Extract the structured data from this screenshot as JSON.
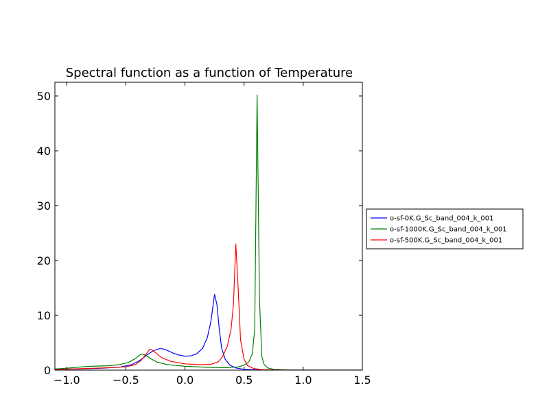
{
  "chart_data": {
    "type": "line",
    "title": "Spectral function as a function of Temperature",
    "xlabel": "",
    "ylabel": "",
    "xlim": [
      -1.1,
      1.5
    ],
    "ylim": [
      0,
      52.5
    ],
    "xticks": [
      -1.0,
      -0.5,
      0.0,
      0.5,
      1.0,
      1.5
    ],
    "xtick_labels": [
      "−1.0",
      "−0.5",
      "0.0",
      "0.5",
      "1.0",
      "1.5"
    ],
    "yticks": [
      0,
      10,
      20,
      30,
      40,
      50
    ],
    "ytick_labels": [
      "0",
      "10",
      "20",
      "30",
      "40",
      "50"
    ],
    "grid": false,
    "legend_position": "right, outside plot area",
    "series": [
      {
        "name": "o-sf-0K.G_Sc_band_004_k_001",
        "color": "#0000ff",
        "points": [
          [
            -1.1,
            0.15
          ],
          [
            -0.9,
            0.2
          ],
          [
            -0.7,
            0.35
          ],
          [
            -0.55,
            0.55
          ],
          [
            -0.45,
            1.0
          ],
          [
            -0.38,
            1.8
          ],
          [
            -0.32,
            2.8
          ],
          [
            -0.27,
            3.5
          ],
          [
            -0.22,
            3.9
          ],
          [
            -0.19,
            3.9
          ],
          [
            -0.15,
            3.6
          ],
          [
            -0.1,
            3.1
          ],
          [
            -0.05,
            2.75
          ],
          [
            0.0,
            2.55
          ],
          [
            0.05,
            2.6
          ],
          [
            0.1,
            3.0
          ],
          [
            0.15,
            4.0
          ],
          [
            0.19,
            6.0
          ],
          [
            0.22,
            9.0
          ],
          [
            0.25,
            13.8
          ],
          [
            0.27,
            12.0
          ],
          [
            0.29,
            7.5
          ],
          [
            0.31,
            4.0
          ],
          [
            0.34,
            2.0
          ],
          [
            0.38,
            0.9
          ],
          [
            0.43,
            0.4
          ],
          [
            0.5,
            0.15
          ],
          [
            0.6,
            0.05
          ],
          [
            0.8,
            0.01
          ],
          [
            1.5,
            0.0
          ]
        ]
      },
      {
        "name": "o-sf-1000K.G_Sc_band_004_k_001",
        "color": "#008000",
        "points": [
          [
            -1.1,
            0.2
          ],
          [
            -1.0,
            0.35
          ],
          [
            -0.9,
            0.55
          ],
          [
            -0.8,
            0.7
          ],
          [
            -0.65,
            0.8
          ],
          [
            -0.55,
            1.0
          ],
          [
            -0.48,
            1.4
          ],
          [
            -0.42,
            2.1
          ],
          [
            -0.38,
            2.8
          ],
          [
            -0.36,
            2.95
          ],
          [
            -0.33,
            2.7
          ],
          [
            -0.29,
            2.1
          ],
          [
            -0.24,
            1.5
          ],
          [
            -0.15,
            1.0
          ],
          [
            0.0,
            0.7
          ],
          [
            0.2,
            0.5
          ],
          [
            0.35,
            0.45
          ],
          [
            0.45,
            0.6
          ],
          [
            0.5,
            0.9
          ],
          [
            0.54,
            1.5
          ],
          [
            0.57,
            3.0
          ],
          [
            0.59,
            7.5
          ],
          [
            0.61,
            50.2
          ],
          [
            0.63,
            13.0
          ],
          [
            0.65,
            2.5
          ],
          [
            0.67,
            1.0
          ],
          [
            0.7,
            0.4
          ],
          [
            0.75,
            0.15
          ],
          [
            0.85,
            0.05
          ],
          [
            1.0,
            0.01
          ],
          [
            1.5,
            0.0
          ]
        ]
      },
      {
        "name": "o-sf-500K.G_Sc_band_004_k_001",
        "color": "#ff0000",
        "points": [
          [
            -1.1,
            0.15
          ],
          [
            -0.9,
            0.25
          ],
          [
            -0.7,
            0.4
          ],
          [
            -0.5,
            0.6
          ],
          [
            -0.42,
            1.0
          ],
          [
            -0.37,
            1.8
          ],
          [
            -0.33,
            2.9
          ],
          [
            -0.3,
            3.75
          ],
          [
            -0.28,
            3.7
          ],
          [
            -0.25,
            3.2
          ],
          [
            -0.2,
            2.3
          ],
          [
            -0.12,
            1.6
          ],
          [
            0.0,
            1.15
          ],
          [
            0.12,
            1.0
          ],
          [
            0.22,
            1.05
          ],
          [
            0.28,
            1.5
          ],
          [
            0.32,
            2.5
          ],
          [
            0.36,
            4.5
          ],
          [
            0.39,
            7.5
          ],
          [
            0.41,
            12.0
          ],
          [
            0.43,
            23.0
          ],
          [
            0.45,
            15.0
          ],
          [
            0.47,
            5.5
          ],
          [
            0.5,
            2.0
          ],
          [
            0.53,
            0.8
          ],
          [
            0.58,
            0.3
          ],
          [
            0.65,
            0.1
          ],
          [
            0.8,
            0.02
          ],
          [
            1.5,
            0.0
          ]
        ]
      }
    ]
  }
}
